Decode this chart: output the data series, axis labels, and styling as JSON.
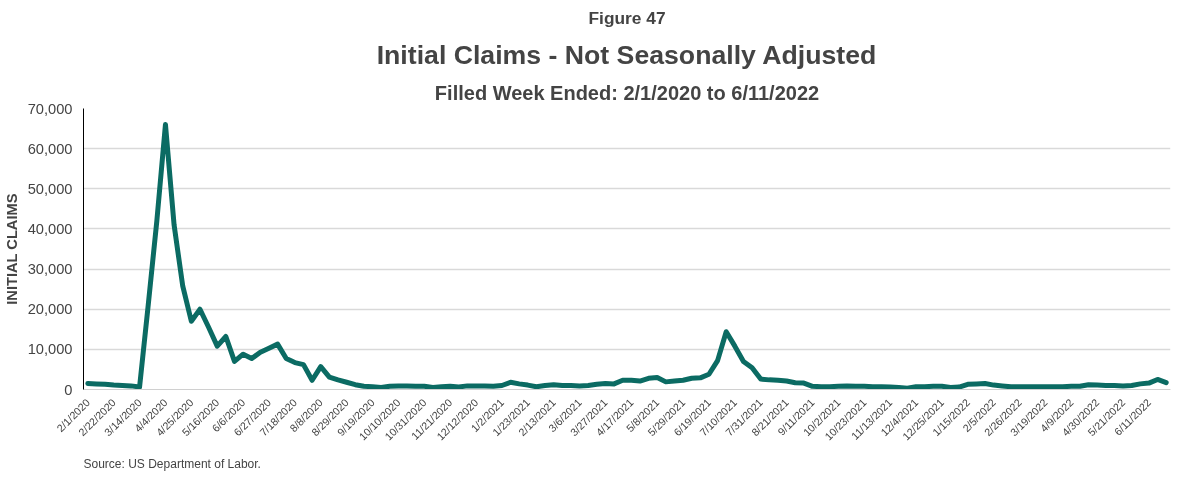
{
  "chart_data": {
    "type": "line",
    "title": "Initial Claims - Not Seasonally Adjusted",
    "subtitle": "Filled Week Ended: 2/1/2020 to 6/11/2022",
    "ylabel": "INITIAL CLAIMS",
    "annotations": [
      "Figure 47",
      "Source: US Department of Labor."
    ],
    "categories": [
      "2/1/2020",
      null,
      null,
      "2/22/2020",
      null,
      null,
      "3/14/2020",
      null,
      null,
      "4/4/2020",
      null,
      null,
      "4/25/2020",
      null,
      null,
      "5/16/2020",
      null,
      null,
      "6/6/2020",
      null,
      null,
      "6/27/2020",
      null,
      null,
      "7/18/2020",
      null,
      null,
      "8/8/2020",
      null,
      null,
      "8/29/2020",
      null,
      null,
      "9/19/2020",
      null,
      null,
      "10/10/2020",
      null,
      null,
      "10/31/2020",
      null,
      null,
      "11/21/2020",
      null,
      null,
      "12/12/2020",
      null,
      null,
      "1/2/2021",
      null,
      null,
      "1/23/2021",
      null,
      null,
      "2/13/2021",
      null,
      null,
      "3/6/2021",
      null,
      null,
      "3/27/2021",
      null,
      null,
      "4/17/2021",
      null,
      null,
      "5/8/2021",
      null,
      null,
      "5/29/2021",
      null,
      null,
      "6/19/2021",
      null,
      null,
      "7/10/2021",
      null,
      null,
      "7/31/2021",
      null,
      null,
      "8/21/2021",
      null,
      null,
      "9/11/2021",
      null,
      null,
      "10/2/2021",
      null,
      null,
      "10/23/2021",
      null,
      null,
      "11/13/2021",
      null,
      null,
      "12/4/2021",
      null,
      null,
      "12/25/2021",
      null,
      null,
      "1/15/2022",
      null,
      null,
      "2/5/2022",
      null,
      null,
      "2/26/2022",
      null,
      null,
      "3/19/2022",
      null,
      null,
      "4/9/2022",
      null,
      null,
      "4/30/2022",
      null,
      null,
      "5/21/2022",
      null,
      null,
      "6/11/2022",
      null,
      null
    ],
    "series": [
      {
        "color": "#0b6b63",
        "values": [
          1500,
          1400,
          1300,
          1100,
          1000,
          900,
          600,
          21000,
          42000,
          66000,
          41000,
          25800,
          17000,
          20000,
          15500,
          10800,
          13200,
          7000,
          8800,
          7700,
          9300,
          10300,
          11300,
          7700,
          6700,
          6200,
          2300,
          5700,
          3100,
          2400,
          1800,
          1200,
          800,
          700,
          500,
          800,
          900,
          900,
          800,
          800,
          500,
          700,
          800,
          600,
          900,
          900,
          900,
          800,
          1000,
          1800,
          1400,
          1100,
          700,
          1000,
          1200,
          1000,
          1000,
          900,
          1000,
          1300,
          1500,
          1400,
          2300,
          2300,
          2100,
          2800,
          3000,
          1900,
          2100,
          2300,
          2800,
          2900,
          3800,
          7200,
          14400,
          10800,
          7000,
          5400,
          2600,
          2400,
          2300,
          2100,
          1700,
          1600,
          800,
          700,
          700,
          800,
          900,
          800,
          800,
          700,
          700,
          600,
          500,
          300,
          700,
          700,
          800,
          800,
          500,
          600,
          1300,
          1400,
          1500,
          1100,
          900,
          700,
          700,
          700,
          700,
          700,
          700,
          700,
          800,
          800,
          1200,
          1100,
          1000,
          1000,
          900,
          1000,
          1400,
          1600,
          2500,
          1700
        ]
      }
    ],
    "ylim": [
      0,
      70000
    ],
    "yticks": [
      0,
      {
        "value": 10000,
        "label": "10,000"
      },
      {
        "value": 20000,
        "label": "20,000"
      },
      {
        "value": 30000,
        "label": "30,000"
      },
      {
        "value": 40000,
        "label": "40,000"
      },
      {
        "value": 50000,
        "label": "50,000"
      },
      {
        "value": 60000,
        "label": "60,000"
      },
      {
        "value": 70000,
        "label": "70,000"
      }
    ],
    "grid": "y",
    "marker": "none",
    "line_style": "solid"
  }
}
